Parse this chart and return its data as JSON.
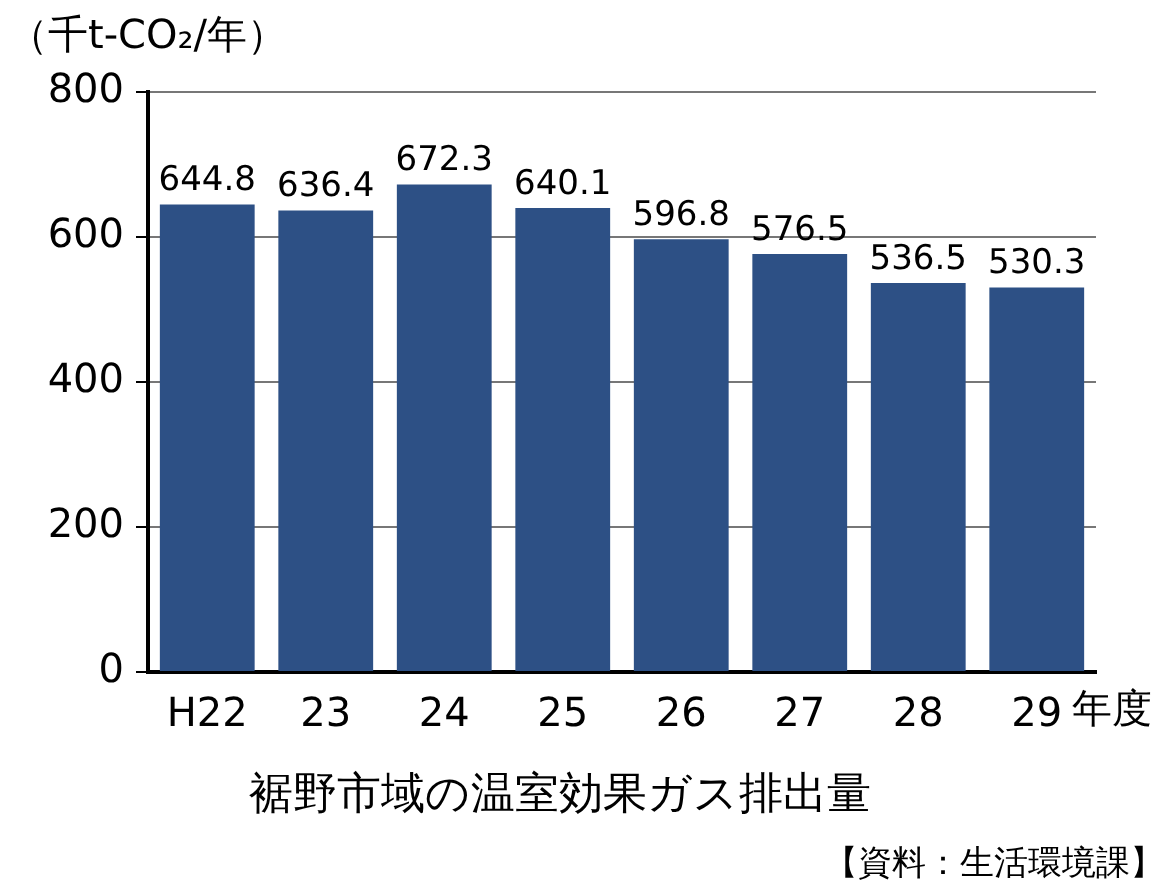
{
  "chart_data": {
    "type": "bar",
    "title": "裾野市域の温室効果ガス排出量",
    "ylabel": "（千t-CO₂/年）",
    "xlabel": "年度",
    "annotations": [
      "【資料：生活環境課】"
    ],
    "categories": [
      "H22",
      "23",
      "24",
      "25",
      "26",
      "27",
      "28",
      "29"
    ],
    "values": [
      644.8,
      636.4,
      672.3,
      640.1,
      596.8,
      576.5,
      536.5,
      530.3
    ],
    "color": "#2d5085",
    "ylim": [
      0,
      800
    ],
    "yticks": [
      0,
      200,
      400,
      600,
      800
    ],
    "grid": "y",
    "data_labels": true,
    "legend": false
  }
}
